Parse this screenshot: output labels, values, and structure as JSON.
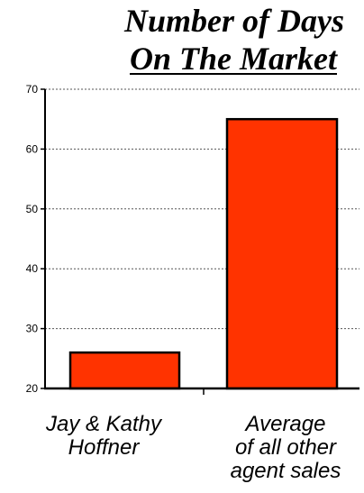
{
  "title": {
    "line1": "Number of Days",
    "line2": "On The Market"
  },
  "chart_data": {
    "type": "bar",
    "categories": [
      "Jay & Kathy\nHoffner",
      "Average\nof all other\nagent sales"
    ],
    "values": [
      26,
      65
    ],
    "title": "Number of Days On The Market",
    "xlabel": "",
    "ylabel": "",
    "ylim": [
      20,
      70
    ],
    "yticks": [
      20,
      30,
      40,
      50,
      60,
      70
    ],
    "ytick_labels": [
      "20",
      "30",
      "40",
      "50",
      "60",
      "70"
    ],
    "grid": true,
    "grid_style": "dotted",
    "bar_color": "#FF3300",
    "bar_edge_color": "#000000"
  }
}
